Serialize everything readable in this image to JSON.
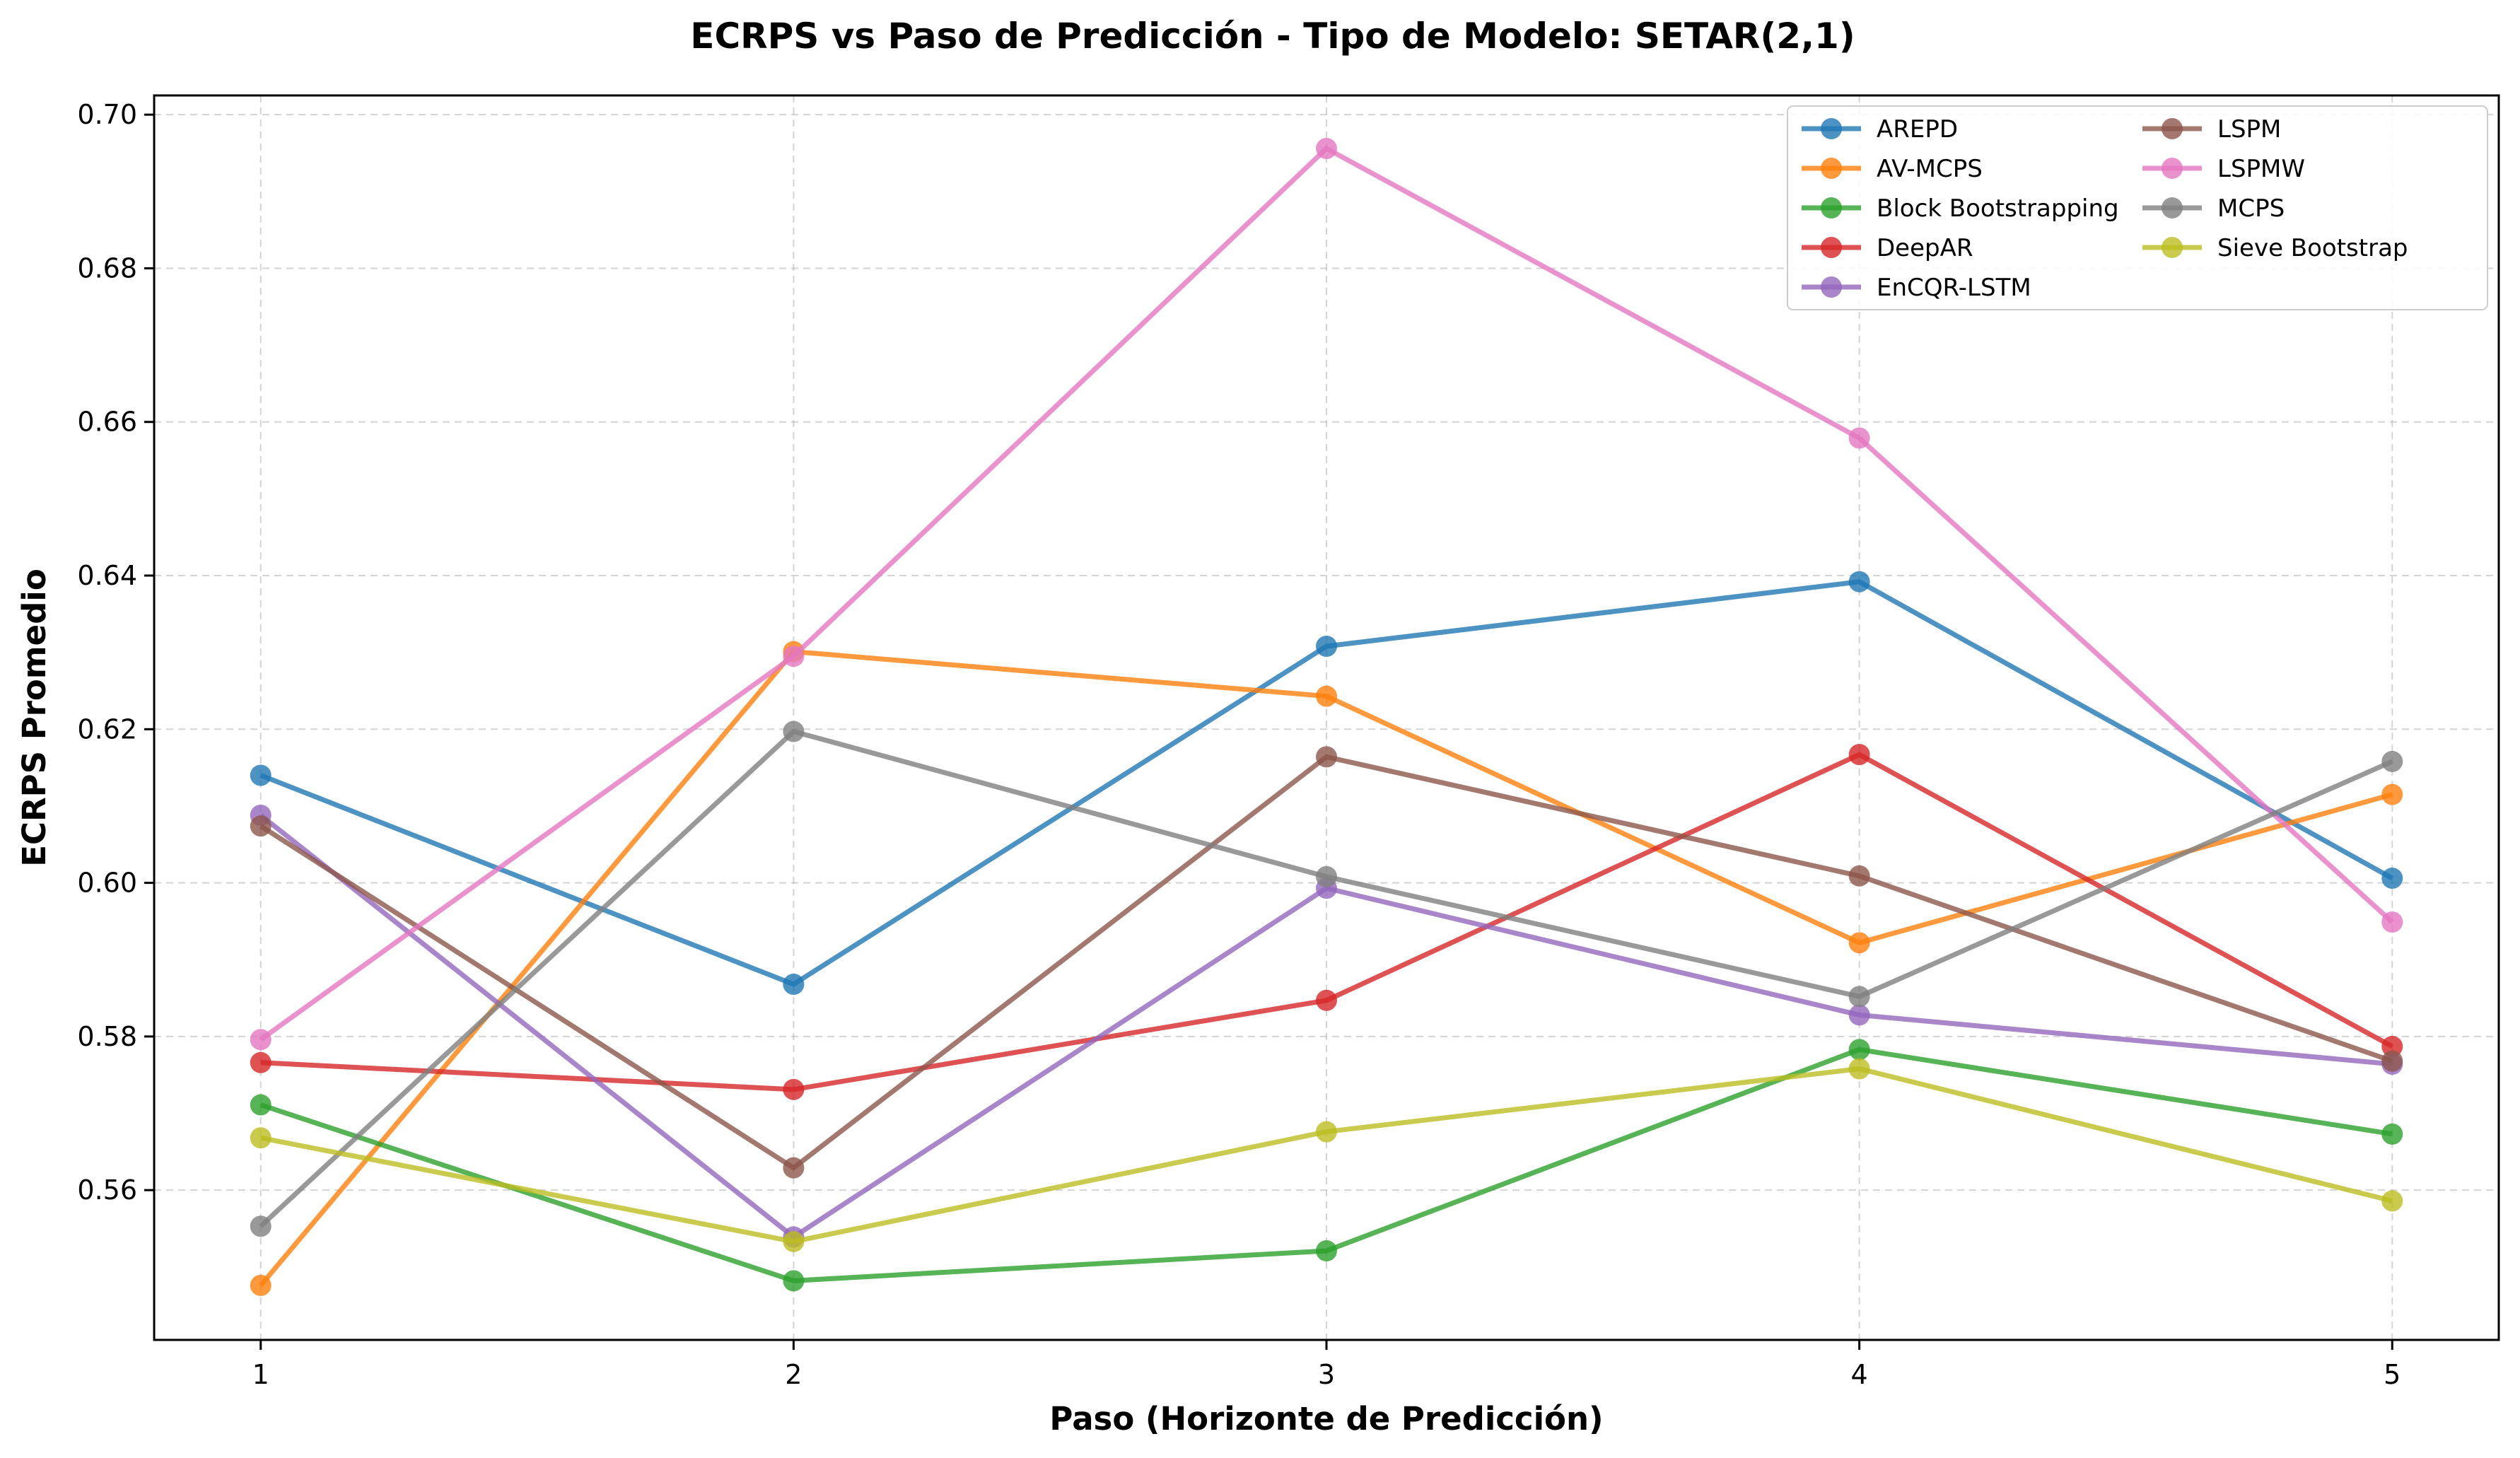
{
  "chart_data": {
    "type": "line",
    "title": "ECRPS vs Paso de Predicción - Tipo de Modelo: SETAR(2,1)",
    "xlabel": "Paso (Horizonte de Predicción)",
    "ylabel": "ECRPS Promedio",
    "x": [
      1,
      2,
      3,
      4,
      5
    ],
    "xlim": [
      0.8,
      5.2
    ],
    "ylim": [
      0.5405,
      0.7025
    ],
    "yticks": [
      0.56,
      0.58,
      0.6,
      0.62,
      0.64,
      0.66,
      0.68,
      0.7
    ],
    "ytick_labels": [
      "0.56",
      "0.58",
      "0.60",
      "0.62",
      "0.64",
      "0.66",
      "0.68",
      "0.70"
    ],
    "xtick_labels": [
      "1",
      "2",
      "3",
      "4",
      "5"
    ],
    "grid": true,
    "legend_position": "top-right",
    "series": [
      {
        "name": "AREPD",
        "color": "#1f77b4",
        "values": [
          0.614,
          0.5868,
          0.6308,
          0.6392,
          0.6006
        ]
      },
      {
        "name": "AV-MCPS",
        "color": "#ff7f0e",
        "values": [
          0.5476,
          0.6301,
          0.6243,
          0.5922,
          0.6115
        ]
      },
      {
        "name": "Block Bootstrapping",
        "color": "#2ca02c",
        "values": [
          0.5711,
          0.5482,
          0.5521,
          0.5783,
          0.5673
        ]
      },
      {
        "name": "DeepAR",
        "color": "#d62728",
        "values": [
          0.5766,
          0.5731,
          0.5847,
          0.6167,
          0.5787
        ]
      },
      {
        "name": "EnCQR-LSTM",
        "color": "#9467bd",
        "values": [
          0.6088,
          0.5539,
          0.5993,
          0.5828,
          0.5764
        ]
      },
      {
        "name": "LSPM",
        "color": "#8c564b",
        "values": [
          0.6074,
          0.5629,
          0.6164,
          0.6009,
          0.5768
        ]
      },
      {
        "name": "LSPMW",
        "color": "#e377c2",
        "values": [
          0.5796,
          0.6295,
          0.6956,
          0.6579,
          0.5949
        ]
      },
      {
        "name": "MCPS",
        "color": "#7f7f7f",
        "values": [
          0.5553,
          0.6197,
          0.6008,
          0.5852,
          0.6158
        ]
      },
      {
        "name": "Sieve Bootstrap",
        "color": "#bcbd22",
        "values": [
          0.5668,
          0.5533,
          0.5676,
          0.5758,
          0.5586
        ]
      }
    ]
  }
}
